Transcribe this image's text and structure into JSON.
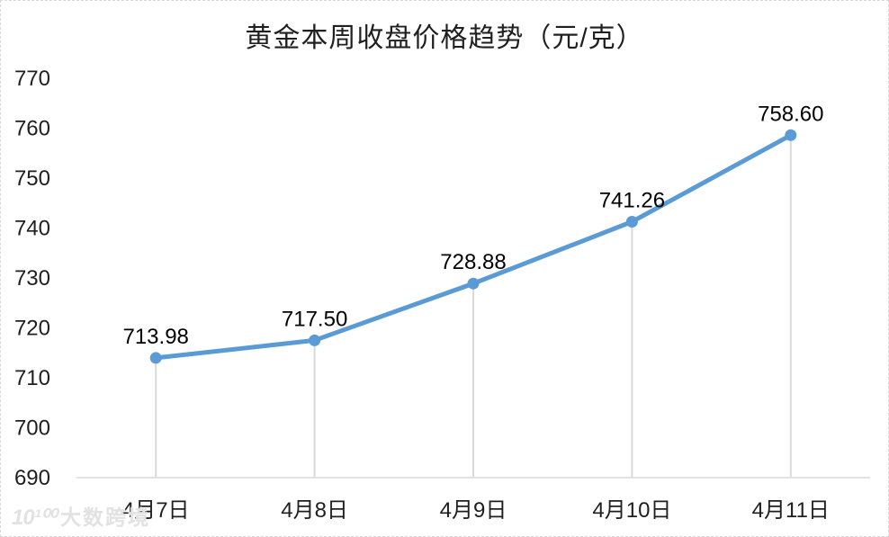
{
  "chart_data": {
    "type": "line",
    "title": "黄金本周收盘价格趋势（元/克）",
    "categories": [
      "4月7日",
      "4月8日",
      "4月9日",
      "4月10日",
      "4月11日"
    ],
    "values": [
      713.98,
      717.5,
      728.88,
      741.26,
      758.6
    ],
    "data_labels": [
      "713.98",
      "717.50",
      "728.88",
      "741.26",
      "758.60"
    ],
    "xlabel": "",
    "ylabel": "",
    "ylim": [
      690,
      770
    ],
    "yticks": [
      690,
      700,
      710,
      720,
      730,
      740,
      750,
      760,
      770
    ],
    "grid": "none",
    "legend": "none",
    "drop_lines": true,
    "line_color": "#5B9BD5",
    "marker_color": "#5B9BD5",
    "dropline_color": "#D9D9D9",
    "axis_color": "#D9D9D9",
    "text_color": "#1f1f1f"
  },
  "watermark": {
    "logo": "10¹⁰⁰",
    "text": "大数跨境"
  }
}
